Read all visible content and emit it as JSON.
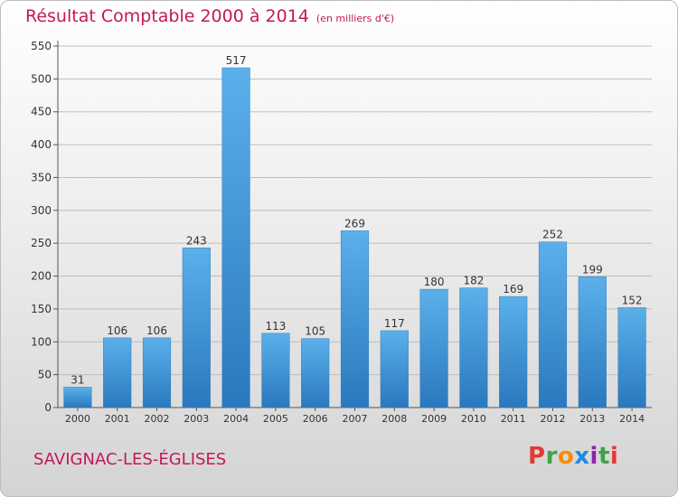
{
  "header": {
    "title": "Résultat Comptable 2000 à 2014",
    "subtitle": "(en milliers d'€)"
  },
  "footer": {
    "location": "SAVIGNAC-LES-ÉGLISES"
  },
  "logo": {
    "letters": [
      "P",
      "r",
      "o",
      "x",
      "i",
      "t",
      "i"
    ],
    "colors": [
      "#e53935",
      "#43a047",
      "#fb8c00",
      "#1e88e5",
      "#8e24aa",
      "#43a047",
      "#e53935"
    ]
  },
  "chart_data": {
    "type": "bar",
    "title": "Résultat Comptable 2000 à 2014",
    "xlabel": "",
    "ylabel": "",
    "categories": [
      "2000",
      "2001",
      "2002",
      "2003",
      "2004",
      "2005",
      "2006",
      "2007",
      "2008",
      "2009",
      "2010",
      "2011",
      "2012",
      "2013",
      "2014"
    ],
    "values": [
      31,
      106,
      106,
      243,
      517,
      113,
      105,
      269,
      117,
      180,
      182,
      169,
      252,
      199,
      152
    ],
    "ylim": [
      0,
      550
    ],
    "yticks": [
      0,
      50,
      100,
      150,
      200,
      250,
      300,
      350,
      400,
      450,
      500,
      550
    ],
    "grid": true,
    "bar_color": "#3d8ed0",
    "bar_color_light": "#5bb0ea"
  }
}
